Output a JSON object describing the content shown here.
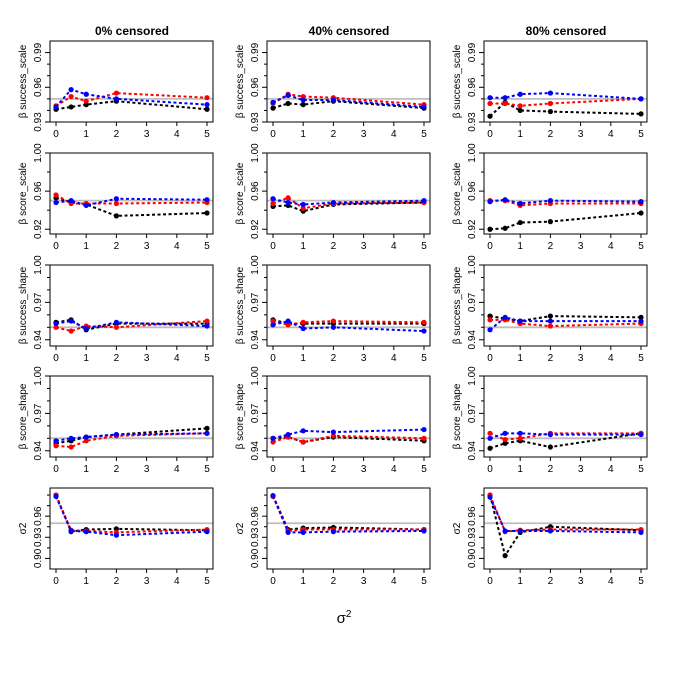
{
  "chart_data": {
    "type": "line",
    "title_prefix": "",
    "column_titles": [
      "0% censored",
      "40% censored",
      "80% censored"
    ],
    "xlabel": "σ2",
    "x": [
      0,
      0.5,
      1,
      2,
      5
    ],
    "x_ticks": [
      0,
      1,
      2,
      3,
      4,
      5
    ],
    "xlim": [
      0,
      5
    ],
    "reference_line": 0.95,
    "reference_color": "#bebebe",
    "series_colors": {
      "black": "#000000",
      "red": "#ff0000",
      "blue": "#0000ff"
    },
    "rows": [
      {
        "ylabel": "β success_scale",
        "ylim": [
          0.93,
          1.0
        ],
        "y_ticks": [
          "0.93",
          "0.96",
          "0.99"
        ],
        "minor_ticks": [
          0.94,
          0.95,
          0.97,
          0.98
        ],
        "panels": [
          {
            "black": [
              0.941,
              0.943,
              0.945,
              0.948,
              0.941
            ],
            "red": [
              0.944,
              0.952,
              0.948,
              0.955,
              0.951
            ],
            "blue": [
              0.943,
              0.958,
              0.954,
              0.95,
              0.945
            ]
          },
          {
            "black": [
              0.942,
              0.946,
              0.945,
              0.948,
              0.942
            ],
            "red": [
              0.946,
              0.954,
              0.952,
              0.951,
              0.945
            ],
            "blue": [
              0.947,
              0.953,
              0.949,
              0.949,
              0.943
            ]
          },
          {
            "black": [
              0.935,
              0.947,
              0.94,
              0.939,
              0.937
            ],
            "red": [
              0.946,
              0.946,
              0.944,
              0.946,
              0.95
            ],
            "blue": [
              0.951,
              0.951,
              0.954,
              0.955,
              0.95
            ]
          }
        ]
      },
      {
        "ylabel": "β score_scale",
        "ylim": [
          0.915,
          1.0
        ],
        "y_ticks": [
          "0.92",
          "0.96",
          "1.00"
        ],
        "minor_ticks": [
          0.94,
          0.98
        ],
        "panels": [
          {
            "black": [
              0.953,
              0.948,
              0.946,
              0.934,
              0.937
            ],
            "red": [
              0.956,
              0.947,
              0.947,
              0.947,
              0.948
            ],
            "blue": [
              0.948,
              0.95,
              0.945,
              0.952,
              0.951
            ]
          },
          {
            "black": [
              0.944,
              0.945,
              0.939,
              0.946,
              0.948
            ],
            "red": [
              0.947,
              0.953,
              0.942,
              0.947,
              0.948
            ],
            "blue": [
              0.952,
              0.948,
              0.946,
              0.948,
              0.95
            ]
          },
          {
            "black": [
              0.92,
              0.921,
              0.927,
              0.928,
              0.937
            ],
            "red": [
              0.95,
              0.95,
              0.945,
              0.947,
              0.947
            ],
            "blue": [
              0.949,
              0.951,
              0.947,
              0.95,
              0.949
            ]
          }
        ]
      },
      {
        "ylabel": "β success_shape",
        "ylim": [
          0.935,
          1.0
        ],
        "y_ticks": [
          "0.94",
          "0.97",
          "1.00"
        ],
        "minor_ticks": [
          0.95,
          0.96,
          0.98,
          0.99
        ],
        "panels": [
          {
            "black": [
              0.954,
              0.956,
              0.948,
              0.953,
              0.953
            ],
            "red": [
              0.95,
              0.947,
              0.951,
              0.95,
              0.955
            ],
            "blue": [
              0.953,
              0.955,
              0.949,
              0.954,
              0.951
            ]
          },
          {
            "black": [
              0.956,
              0.953,
              0.953,
              0.953,
              0.953
            ],
            "red": [
              0.955,
              0.952,
              0.954,
              0.955,
              0.954
            ],
            "blue": [
              0.952,
              0.955,
              0.949,
              0.95,
              0.947
            ]
          },
          {
            "black": [
              0.959,
              0.957,
              0.955,
              0.959,
              0.958
            ],
            "red": [
              0.956,
              0.956,
              0.953,
              0.951,
              0.953
            ],
            "blue": [
              0.948,
              0.958,
              0.955,
              0.955,
              0.955
            ]
          }
        ]
      },
      {
        "ylabel": "β score_shape",
        "ylim": [
          0.935,
          1.0
        ],
        "y_ticks": [
          "0.94",
          "0.97",
          "1.00"
        ],
        "minor_ticks": [
          0.95,
          0.96,
          0.98,
          0.99
        ],
        "panels": [
          {
            "black": [
              0.946,
              0.948,
              0.951,
              0.953,
              0.958
            ],
            "red": [
              0.944,
              0.943,
              0.948,
              0.952,
              0.954
            ],
            "blue": [
              0.948,
              0.95,
              0.951,
              0.953,
              0.954
            ]
          },
          {
            "black": [
              0.95,
              0.951,
              0.947,
              0.951,
              0.948
            ],
            "red": [
              0.947,
              0.951,
              0.947,
              0.952,
              0.95
            ],
            "blue": [
              0.95,
              0.953,
              0.956,
              0.955,
              0.957
            ]
          },
          {
            "black": [
              0.942,
              0.946,
              0.948,
              0.943,
              0.954
            ],
            "red": [
              0.954,
              0.949,
              0.95,
              0.954,
              0.954
            ],
            "blue": [
              0.95,
              0.954,
              0.954,
              0.953,
              0.953
            ]
          }
        ]
      },
      {
        "ylabel": "σ2",
        "ylim": [
          0.885,
          1.0
        ],
        "y_ticks": [
          "0.90",
          "0.93",
          "0.96"
        ],
        "minor_ticks": [
          0.915,
          0.945,
          0.975,
          0.99
        ],
        "panels": [
          {
            "black": [
              0.99,
              0.938,
              0.941,
              0.942,
              0.94
            ],
            "red": [
              0.99,
              0.94,
              0.939,
              0.937,
              0.941
            ],
            "blue": [
              0.988,
              0.939,
              0.938,
              0.933,
              0.938
            ]
          },
          {
            "black": [
              0.989,
              0.941,
              0.943,
              0.944,
              0.941
            ],
            "red": [
              0.988,
              0.939,
              0.941,
              0.941,
              0.941
            ],
            "blue": [
              0.989,
              0.937,
              0.937,
              0.938,
              0.939
            ]
          },
          {
            "black": [
              0.99,
              0.904,
              0.937,
              0.945,
              0.94
            ],
            "red": [
              0.99,
              0.938,
              0.94,
              0.941,
              0.941
            ],
            "blue": [
              0.987,
              0.939,
              0.939,
              0.939,
              0.937
            ]
          }
        ]
      }
    ]
  }
}
